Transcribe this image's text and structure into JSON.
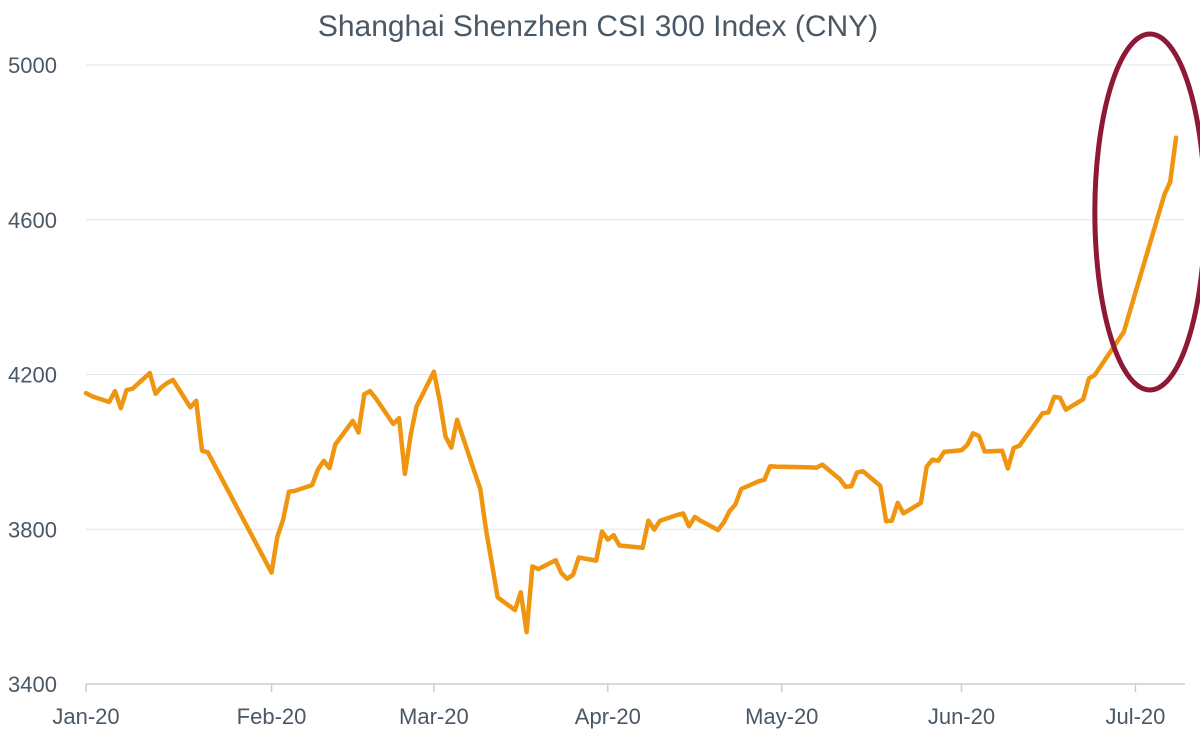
{
  "chart_data": {
    "type": "line",
    "title": "Shanghai Shenzhen CSI 300 Index (CNY)",
    "xlabel": "",
    "ylabel": "",
    "ylim": [
      3400,
      5000
    ],
    "yticks": [
      "5000",
      "4600",
      "4200",
      "3800",
      "3400"
    ],
    "xlim": [
      "2020-01-02",
      "2020-07-08"
    ],
    "xticks": [
      {
        "label": "Jan-20",
        "date": "2020-01-02"
      },
      {
        "label": "Feb-20",
        "date": "2020-02-03"
      },
      {
        "label": "Mar-20",
        "date": "2020-03-02"
      },
      {
        "label": "Apr-20",
        "date": "2020-04-01"
      },
      {
        "label": "May-20",
        "date": "2020-05-01"
      },
      {
        "label": "Jun-20",
        "date": "2020-06-01"
      },
      {
        "label": "Jul-20",
        "date": "2020-07-01"
      }
    ],
    "grid": true,
    "colors": {
      "line": "#f0950f",
      "highlight": "#8e1836",
      "grid": "#e3e6ea",
      "axis": "#c9cdd2",
      "text": "#4a5866"
    },
    "annotation": {
      "type": "ellipse",
      "label": "",
      "x_range": [
        "2020-06-24",
        "2020-07-13"
      ],
      "y_range": [
        4160,
        5080
      ]
    },
    "series": [
      {
        "name": "",
        "x": [
          "2020-01-02",
          "2020-01-03",
          "2020-01-06",
          "2020-01-07",
          "2020-01-08",
          "2020-01-09",
          "2020-01-10",
          "2020-01-13",
          "2020-01-14",
          "2020-01-15",
          "2020-01-16",
          "2020-01-17",
          "2020-01-20",
          "2020-01-21",
          "2020-01-22",
          "2020-01-23",
          "2020-02-03",
          "2020-02-04",
          "2020-02-05",
          "2020-02-06",
          "2020-02-07",
          "2020-02-10",
          "2020-02-11",
          "2020-02-12",
          "2020-02-13",
          "2020-02-14",
          "2020-02-17",
          "2020-02-18",
          "2020-02-19",
          "2020-02-20",
          "2020-02-21",
          "2020-02-24",
          "2020-02-25",
          "2020-02-26",
          "2020-02-27",
          "2020-02-28",
          "2020-03-02",
          "2020-03-03",
          "2020-03-04",
          "2020-03-05",
          "2020-03-06",
          "2020-03-09",
          "2020-03-10",
          "2020-03-11",
          "2020-03-12",
          "2020-03-13",
          "2020-03-16",
          "2020-03-17",
          "2020-03-18",
          "2020-03-19",
          "2020-03-20",
          "2020-03-23",
          "2020-03-24",
          "2020-03-25",
          "2020-03-26",
          "2020-03-27",
          "2020-03-30",
          "2020-03-31",
          "2020-04-01",
          "2020-04-02",
          "2020-04-03",
          "2020-04-07",
          "2020-04-08",
          "2020-04-09",
          "2020-04-10",
          "2020-04-13",
          "2020-04-14",
          "2020-04-15",
          "2020-04-16",
          "2020-04-17",
          "2020-04-20",
          "2020-04-21",
          "2020-04-22",
          "2020-04-23",
          "2020-04-24",
          "2020-04-27",
          "2020-04-28",
          "2020-04-29",
          "2020-04-30",
          "2020-05-06",
          "2020-05-07",
          "2020-05-08",
          "2020-05-11",
          "2020-05-12",
          "2020-05-13",
          "2020-05-14",
          "2020-05-15",
          "2020-05-18",
          "2020-05-19",
          "2020-05-20",
          "2020-05-21",
          "2020-05-22",
          "2020-05-25",
          "2020-05-26",
          "2020-05-27",
          "2020-05-28",
          "2020-05-29",
          "2020-06-01",
          "2020-06-02",
          "2020-06-03",
          "2020-06-04",
          "2020-06-05",
          "2020-06-08",
          "2020-06-09",
          "2020-06-10",
          "2020-06-11",
          "2020-06-12",
          "2020-06-15",
          "2020-06-16",
          "2020-06-17",
          "2020-06-18",
          "2020-06-19",
          "2020-06-22",
          "2020-06-23",
          "2020-06-24",
          "2020-06-29",
          "2020-07-06",
          "2020-07-07",
          "2020-07-08"
        ],
        "values": [
          4152,
          4144,
          4129,
          4157,
          4113,
          4160,
          4163,
          4204,
          4150,
          4167,
          4178,
          4186,
          4115,
          4132,
          4003,
          3999,
          3688,
          3780,
          3825,
          3897,
          3899,
          3914,
          3954,
          3977,
          3958,
          4019,
          4080,
          4050,
          4149,
          4157,
          4138,
          4072,
          4087,
          3943,
          4044,
          4117,
          4207,
          4132,
          4040,
          4011,
          4083,
          3948,
          3904,
          3797,
          3711,
          3624,
          3591,
          3637,
          3534,
          3704,
          3697,
          3720,
          3687,
          3672,
          3682,
          3727,
          3719,
          3794,
          3773,
          3785,
          3758,
          3752,
          3822,
          3799,
          3822,
          3837,
          3841,
          3808,
          3832,
          3822,
          3798,
          3818,
          3847,
          3864,
          3904,
          3924,
          3928,
          3963,
          3962,
          3960,
          3959,
          3967,
          3930,
          3910,
          3911,
          3947,
          3950,
          3912,
          3821,
          3822,
          3868,
          3841,
          3868,
          3962,
          3980,
          3977,
          4000,
          4004,
          4018,
          4048,
          4041,
          4001,
          4003,
          3957,
          4010,
          4016,
          4037,
          4100,
          4102,
          4142,
          4140,
          4109,
          4136,
          4190,
          4199,
          4310,
          4665,
          4698,
          4812
        ]
      }
    ]
  }
}
